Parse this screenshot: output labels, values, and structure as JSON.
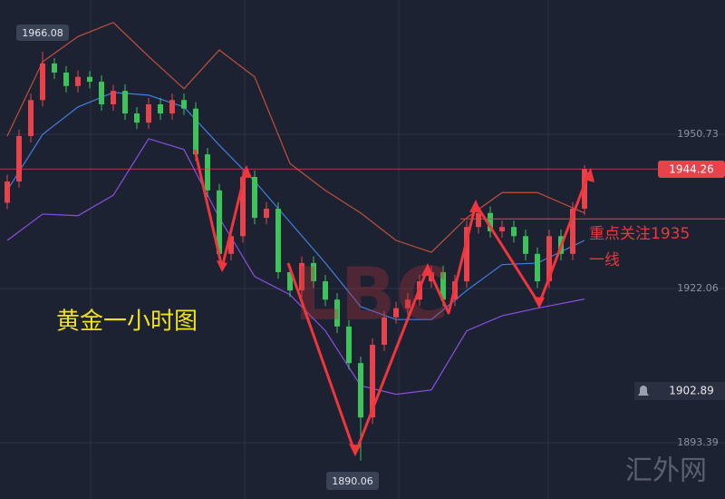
{
  "chart_data": {
    "type": "candlestick",
    "annotations": {
      "title": "黄金一小时图",
      "focus_line1": "重点关注1935",
      "focus_line2": "一线",
      "watermark": "LBC",
      "site": "汇外网"
    },
    "up_color": "#e8434b",
    "down_color": "#3cc35a",
    "open": [
      1938.0,
      1941.96,
      1950.4,
      1957.1,
      1963.9,
      1962.2,
      1959.7,
      1961.4,
      1960.5,
      1956.3,
      1958.8,
      1954.6,
      1952.9,
      1956.3,
      1954.6,
      1957.1,
      1955.5,
      1947.0,
      1940.3,
      1928.5,
      1931.8,
      1942.8,
      1935.2,
      1936.9,
      1925.1,
      1921.7,
      1926.8,
      1923.4,
      1920.0,
      1915.0,
      1908.2,
      1898.1,
      1911.6,
      1916.7,
      1918.4,
      1920.0,
      1923.4,
      1925.1,
      1920.0,
      1923.4,
      1933.5,
      1936.1,
      1932.7,
      1933.5,
      1931.8,
      1928.5,
      1923.4,
      1931.8,
      1928.5,
      1936.9
    ],
    "high": [
      1943.2,
      1951.6,
      1958.3,
      1966.08,
      1964.9,
      1963.4,
      1962.6,
      1962.5,
      1961.7,
      1959.9,
      1960.0,
      1955.8,
      1957.5,
      1957.5,
      1958.3,
      1958.3,
      1956.7,
      1948.2,
      1941.5,
      1933.0,
      1944.0,
      1944.0,
      1938.1,
      1938.1,
      1926.3,
      1928.0,
      1928.0,
      1924.6,
      1921.2,
      1916.2,
      1909.4,
      1912.8,
      1917.9,
      1919.6,
      1921.2,
      1924.6,
      1926.3,
      1926.3,
      1924.6,
      1934.7,
      1937.3,
      1937.3,
      1934.7,
      1934.7,
      1933.0,
      1929.7,
      1933.0,
      1933.0,
      1938.1,
      1945.0
    ],
    "low": [
      1936.8,
      1940.8,
      1949.2,
      1955.9,
      1961.0,
      1958.5,
      1958.5,
      1959.3,
      1955.1,
      1955.1,
      1953.4,
      1951.7,
      1951.7,
      1953.4,
      1953.4,
      1954.3,
      1945.8,
      1939.1,
      1927.3,
      1927.3,
      1930.6,
      1934.0,
      1934.0,
      1923.9,
      1920.5,
      1920.5,
      1922.2,
      1918.8,
      1913.8,
      1907.0,
      1890.06,
      1896.9,
      1910.4,
      1915.5,
      1917.2,
      1918.8,
      1922.2,
      1918.8,
      1918.8,
      1922.2,
      1932.3,
      1931.5,
      1931.5,
      1930.6,
      1927.3,
      1922.2,
      1922.2,
      1927.3,
      1927.3,
      1935.7
    ],
    "close": [
      1941.96,
      1950.4,
      1957.1,
      1963.9,
      1962.2,
      1959.7,
      1961.4,
      1960.5,
      1956.3,
      1958.8,
      1954.6,
      1952.9,
      1956.3,
      1954.6,
      1957.1,
      1955.5,
      1947.0,
      1940.3,
      1928.5,
      1931.8,
      1942.8,
      1935.2,
      1936.9,
      1925.1,
      1921.7,
      1926.8,
      1923.4,
      1920.0,
      1915.0,
      1908.2,
      1898.1,
      1911.6,
      1916.7,
      1918.4,
      1920.0,
      1923.4,
      1925.1,
      1920.0,
      1923.4,
      1933.5,
      1936.1,
      1932.7,
      1933.5,
      1931.8,
      1928.5,
      1923.4,
      1931.8,
      1928.5,
      1936.9,
      1944.26
    ],
    "bands": [
      {
        "color": "#c0503a",
        "x": [
          0,
          3,
          6,
          9,
          12,
          15,
          18,
          21,
          24,
          27,
          30,
          33,
          36,
          39,
          42,
          45,
          49
        ],
        "values": [
          1950.4,
          1964.2,
          1968.9,
          1971.5,
          1965.2,
          1959.2,
          1966.4,
          1961.4,
          1945.3,
          1940.3,
          1936.1,
          1931.0,
          1928.8,
          1935.2,
          1939.9,
          1939.9,
          1936.1
        ]
      },
      {
        "color": "#3f7fe0",
        "x": [
          0,
          3,
          6,
          9,
          12,
          15,
          18,
          21,
          24,
          27,
          30,
          33,
          36,
          39,
          42,
          45,
          49
        ],
        "values": [
          1940.3,
          1950.7,
          1955.8,
          1958.5,
          1958.0,
          1955.8,
          1948.7,
          1942.0,
          1934.4,
          1926.8,
          1918.7,
          1916.3,
          1916.3,
          1921.7,
          1926.5,
          1926.8,
          1931.0
        ]
      },
      {
        "color": "#8a4fe0",
        "x": [
          0,
          3,
          6,
          9,
          12,
          15,
          18,
          21,
          24,
          27,
          30,
          33,
          36,
          39,
          42,
          45,
          49
        ],
        "values": [
          1931.0,
          1935.9,
          1935.6,
          1939.4,
          1949.9,
          1947.9,
          1935.2,
          1924.3,
          1920.9,
          1914.2,
          1904.0,
          1902.4,
          1903.2,
          1914.2,
          1917.0,
          1918.4,
          1920.1
        ]
      }
    ],
    "ylim": [
      1882.94,
      1975.69
    ],
    "yticks": [
      1950.73,
      1922.06,
      1893.39
    ],
    "grid": true,
    "high_label": 1966.08,
    "low_label": 1890.06,
    "last_price": 1944.26,
    "alert_price": 1902.89,
    "focus_level": 1935
  }
}
